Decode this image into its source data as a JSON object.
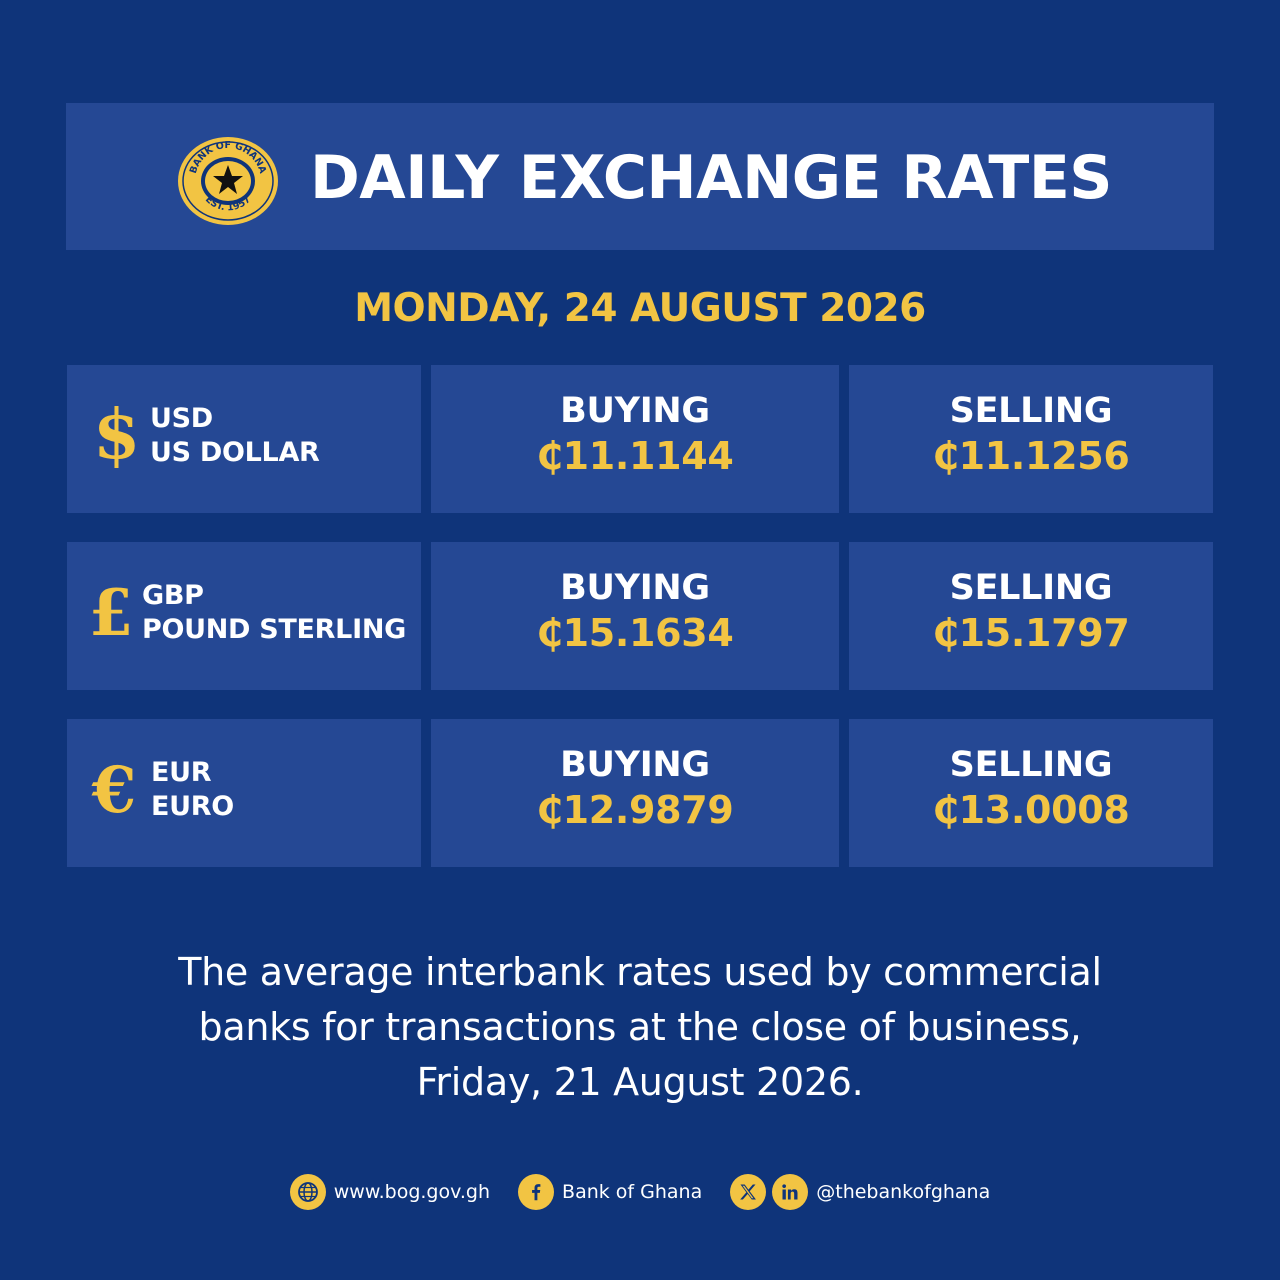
{
  "header": {
    "seal_top_text": "BANK OF GHANA",
    "seal_bottom_text": "EST. 1957",
    "title": "DAILY EXCHANGE RATES"
  },
  "date": "MONDAY, 24 AUGUST 2026",
  "rates": [
    {
      "symbol": "$",
      "code": "USD",
      "name": "US DOLLAR",
      "buying_label": "BUYING",
      "buying": "₵11.1144",
      "selling_label": "SELLING",
      "selling": "₵11.1256"
    },
    {
      "symbol": "£",
      "code": "GBP",
      "name": "POUND STERLING",
      "buying_label": "BUYING",
      "buying": "₵15.1634",
      "selling_label": "SELLING",
      "selling": "₵15.1797"
    },
    {
      "symbol": "€",
      "code": "EUR",
      "name": "EURO",
      "buying_label": "BUYING",
      "buying": "₵12.9879",
      "selling_label": "SELLING",
      "selling": "₵13.0008"
    }
  ],
  "note": {
    "line1": "The average interbank rates used by commercial",
    "line2": "banks for transactions at the close of business,",
    "line3": "Friday, 21 August 2026."
  },
  "footer": {
    "website": "www.bog.gov.gh",
    "facebook": "Bank of Ghana",
    "handle": "@thebankofghana"
  },
  "colors": {
    "background": "#0f347a",
    "panel": "#254894",
    "accent": "#f2c443"
  }
}
